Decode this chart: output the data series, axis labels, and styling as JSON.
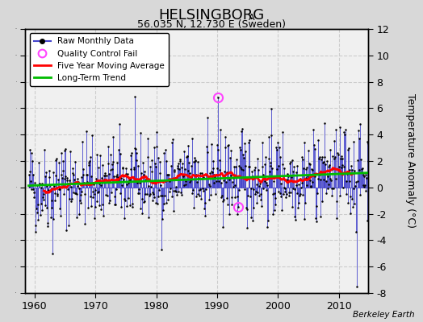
{
  "title": "HELSINGBORG",
  "title_subscript": "A",
  "subtitle": "56.035 N, 12.730 E (Sweden)",
  "ylabel": "Temperature Anomaly (°C)",
  "xlabel_ticks": [
    1960,
    1970,
    1980,
    1990,
    2000,
    2010
  ],
  "ylim": [
    -8,
    12
  ],
  "yticks": [
    -8,
    -6,
    -4,
    -2,
    0,
    2,
    4,
    6,
    8,
    10,
    12
  ],
  "xlim": [
    1958.5,
    2014.8
  ],
  "fig_bg_color": "#d8d8d8",
  "plot_bg_color": "#f0f0f0",
  "raw_line_color": "#4444cc",
  "raw_dot_color": "#000000",
  "moving_avg_color": "#ff0000",
  "trend_color": "#00bb00",
  "qc_fail_color": "#ff44ff",
  "watermark": "Berkeley Earth",
  "seed": 42
}
